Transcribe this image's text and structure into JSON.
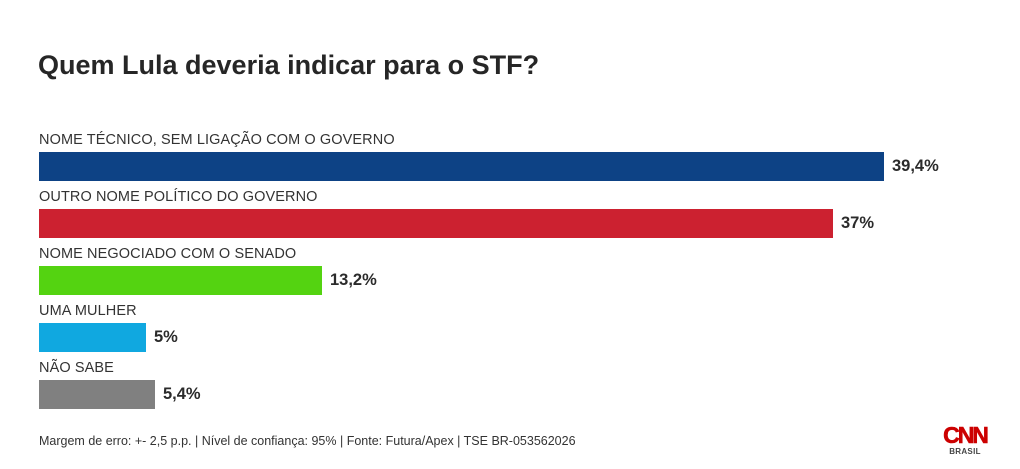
{
  "chart_data": {
    "type": "bar",
    "orientation": "horizontal",
    "title": "Quem Lula deveria indicar para o STF?",
    "categories": [
      "NOME TÉCNICO, SEM LIGAÇÃO COM O GOVERNO",
      "OUTRO NOME POLÍTICO DO GOVERNO",
      "NOME NEGOCIADO COM O SENADO",
      "UMA MULHER",
      "NÃO SABE"
    ],
    "values": [
      39.4,
      37,
      13.2,
      5,
      5.4
    ],
    "value_labels": [
      "39,4%",
      "37%",
      "13,2%",
      "5%",
      "5,4%"
    ],
    "colors": [
      "#0d4285",
      "#cc2130",
      "#54d311",
      "#10a8e0",
      "#808080"
    ],
    "unit": "%",
    "xlim": [
      0,
      40
    ],
    "grid": false,
    "legend": "none"
  },
  "footer": "Margem de erro: +- 2,5 p.p. | Nível de confiança: 95% | Fonte: Futura/Apex | TSE BR-053562026",
  "logo": {
    "mark": "CNN",
    "sub": "BRASIL"
  }
}
